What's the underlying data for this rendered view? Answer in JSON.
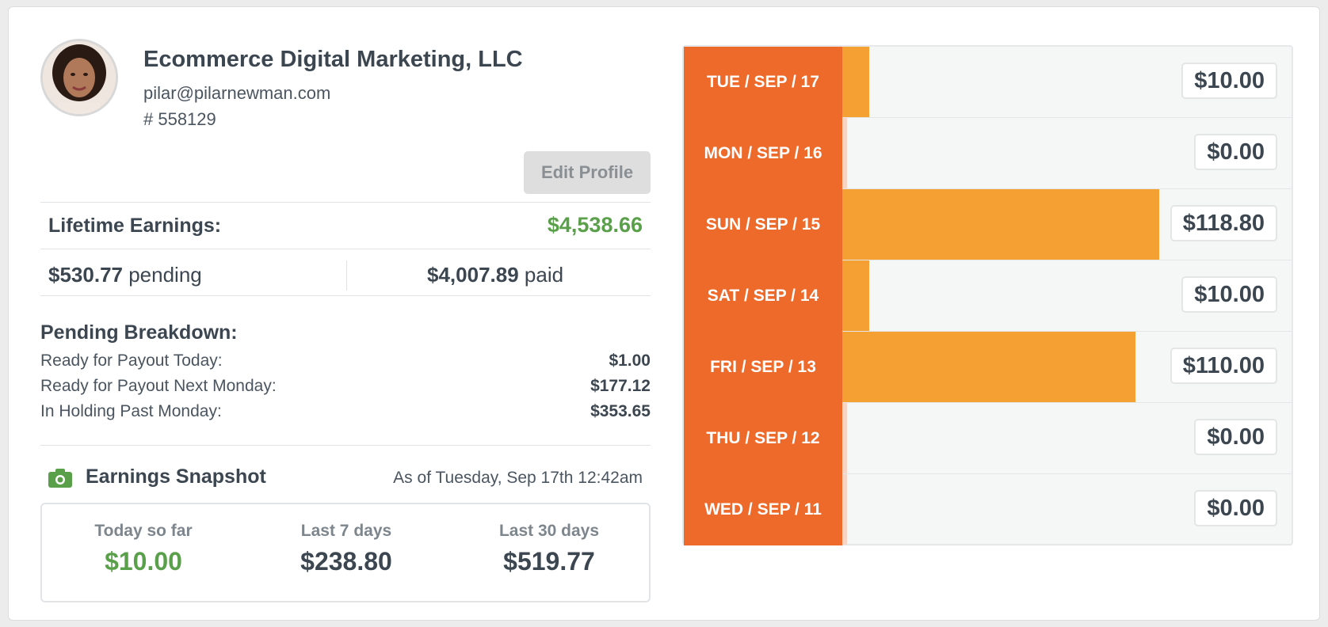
{
  "profile": {
    "company": "Ecommerce Digital Marketing, LLC",
    "email": "pilar@pilarnewman.com",
    "account_number": "# 558129",
    "edit_label": "Edit Profile"
  },
  "earnings": {
    "lifetime_label": "Lifetime Earnings:",
    "lifetime_value": "$4,538.66",
    "pending_value": "$530.77",
    "pending_word": " pending",
    "paid_value": "$4,007.89",
    "paid_word": " paid"
  },
  "pending_breakdown": {
    "title": "Pending Breakdown:",
    "rows": [
      {
        "label": "Ready for Payout Today:",
        "value": "$1.00"
      },
      {
        "label": "Ready for Payout Next Monday:",
        "value": "$177.12"
      },
      {
        "label": "In Holding Past Monday:",
        "value": "$353.65"
      }
    ]
  },
  "snapshot": {
    "icon": "camera-icon",
    "title": "Earnings Snapshot",
    "as_of": "As of Tuesday, Sep 17th 12:42am",
    "cols": [
      {
        "label": "Today so far",
        "value": "$10.00"
      },
      {
        "label": "Last 7 days",
        "value": "$238.80"
      },
      {
        "label": "Last 30 days",
        "value": "$519.77"
      }
    ]
  },
  "colors": {
    "accent_green": "#5aa04a",
    "day_orange": "#ee6a2a",
    "bar_orange": "#f4a032"
  },
  "chart_data": {
    "type": "bar",
    "orientation": "horizontal",
    "categories": [
      "TUE / SEP / 17",
      "MON / SEP / 16",
      "SUN / SEP / 15",
      "SAT / SEP / 14",
      "FRI / SEP / 13",
      "THU / SEP / 12",
      "WED / SEP / 11"
    ],
    "values": [
      10.0,
      0.0,
      118.8,
      10.0,
      110.0,
      0.0,
      0.0
    ],
    "labels": [
      "$10.00",
      "$0.00",
      "$118.80",
      "$10.00",
      "$110.00",
      "$0.00",
      "$0.00"
    ],
    "xlim": [
      0,
      118.8
    ]
  }
}
